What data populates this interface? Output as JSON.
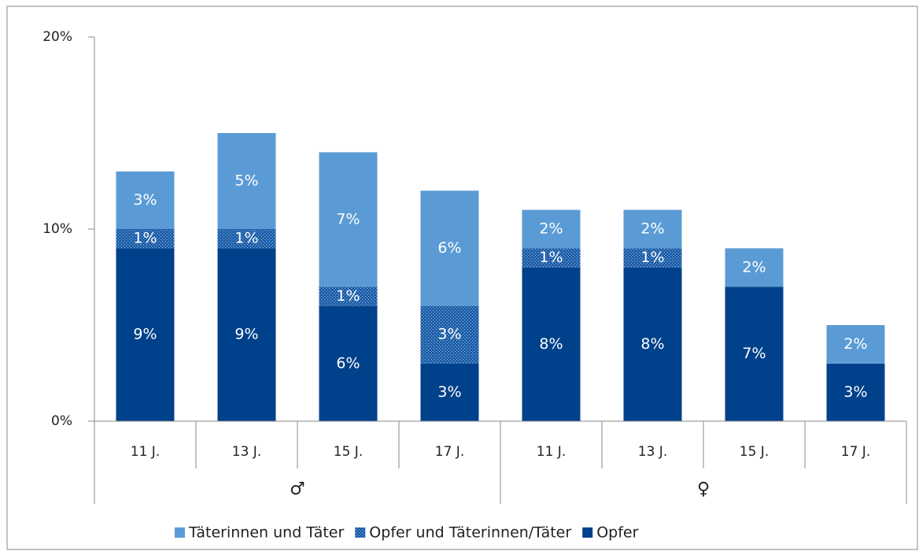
{
  "chart_data": {
    "type": "stacked_bar",
    "categories": [
      "11 J.",
      "13 J.",
      "15 J.",
      "17 J.",
      "11 J.",
      "13 J.",
      "15 J.",
      "17 J."
    ],
    "groups": [
      "♂",
      "♀"
    ],
    "series": [
      {
        "name": "Täterinnen und Täter",
        "color": "#5b9bd5",
        "values": [
          3,
          5,
          7,
          6,
          2,
          2,
          2,
          2
        ],
        "value_labels": [
          "3%",
          "5%",
          "7%",
          "6%",
          "2%",
          "2%",
          "2%",
          "2%"
        ]
      },
      {
        "name": "Opfer und Täterinnen/Täter",
        "color": "#1f5fa8",
        "values": [
          1,
          1,
          1,
          3,
          1,
          1,
          null,
          null
        ],
        "value_labels": [
          "1%",
          "1%",
          "1%",
          "3%",
          "1%",
          "1%",
          null,
          null
        ]
      },
      {
        "name": "Opfer",
        "color": "#00418b",
        "values": [
          9,
          9,
          6,
          3,
          8,
          8,
          7,
          3
        ],
        "value_labels": [
          "9%",
          "9%",
          "6%",
          "3%",
          "8%",
          "8%",
          "7%",
          "3%"
        ]
      }
    ],
    "ylim": [
      0,
      20
    ],
    "yticks": [
      {
        "value": 0,
        "label": "0%"
      },
      {
        "value": 10,
        "label": "10%"
      },
      {
        "value": 20,
        "label": "20%"
      }
    ]
  }
}
